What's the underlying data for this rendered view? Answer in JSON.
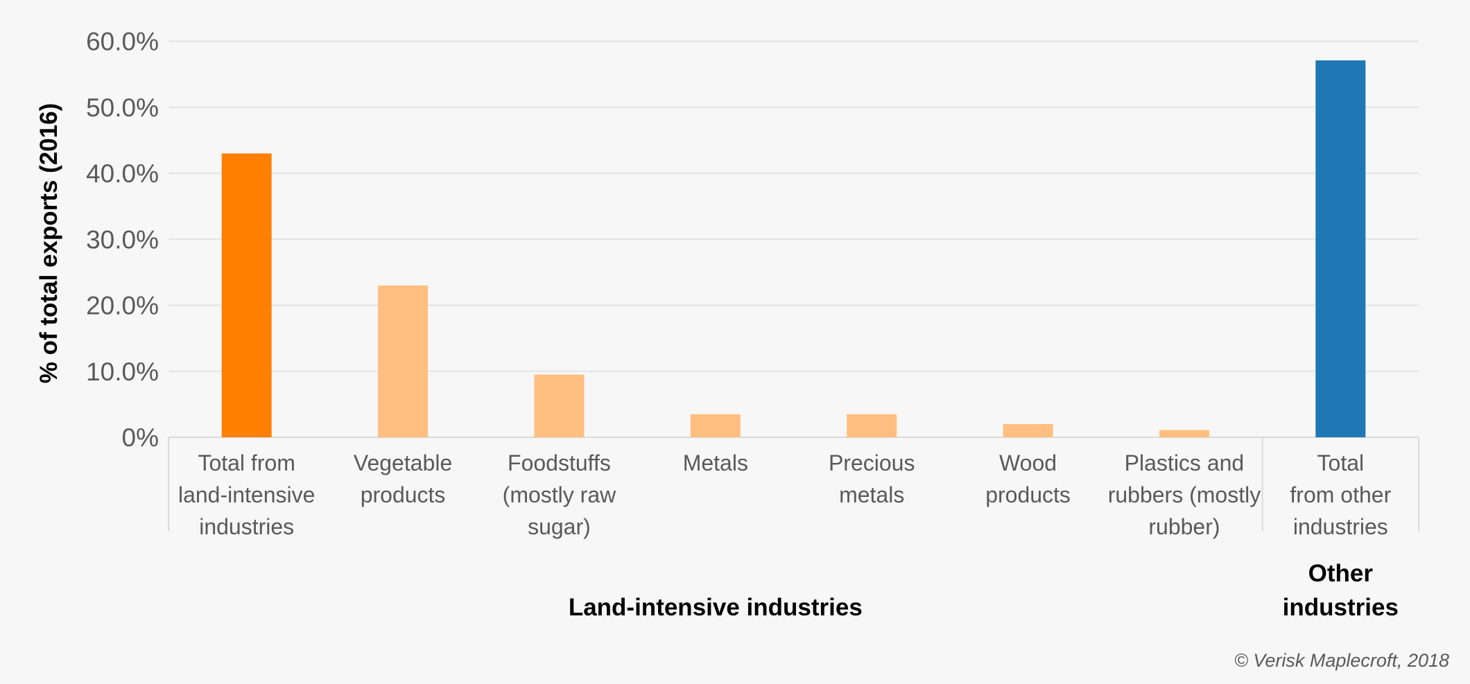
{
  "chart_data": {
    "type": "bar",
    "title": "",
    "xlabel": "",
    "ylabel": "% of total exports (2016)",
    "ylim": [
      0,
      60
    ],
    "yticks": [
      "0%",
      "10.0%",
      "20.0%",
      "30.0%",
      "40.0%",
      "50.0%",
      "60.0%"
    ],
    "ytick_values": [
      0,
      10,
      20,
      30,
      40,
      50,
      60
    ],
    "grid": true,
    "categories": [
      [
        "Total from",
        "land-intensive",
        "industries"
      ],
      [
        "Vegetable",
        "products"
      ],
      [
        "Foodstuffs",
        "(mostly raw",
        "sugar)"
      ],
      [
        "Metals"
      ],
      [
        "Precious",
        "metals"
      ],
      [
        "Wood",
        "products"
      ],
      [
        "Plastics and",
        "rubbers (mostly",
        "rubber)"
      ],
      [
        "Total",
        "from other",
        "industries"
      ]
    ],
    "values": [
      43.0,
      23.0,
      9.5,
      3.5,
      3.5,
      2.0,
      1.1,
      57.1
    ],
    "bar_colors": [
      "#ff8000",
      "#ffbf80",
      "#ffbf80",
      "#ffbf80",
      "#ffbf80",
      "#ffbf80",
      "#ffbf80",
      "#1f77b4"
    ],
    "groups": [
      {
        "label": [
          "Land-intensive industries"
        ],
        "categories": 7
      },
      {
        "label": [
          "Other",
          "industries"
        ],
        "categories": 1
      }
    ]
  },
  "credit": "© Verisk Maplecroft, 2018",
  "colors": {
    "background": "#f7f7f7",
    "grid": "#e3e3e3",
    "axis_text": "#595959"
  }
}
